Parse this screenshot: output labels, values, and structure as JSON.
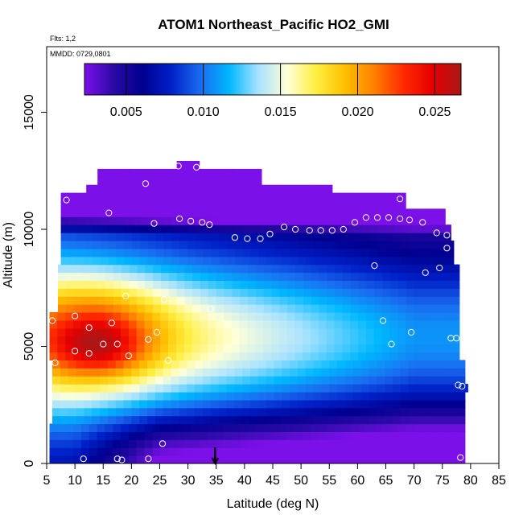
{
  "chart_data": {
    "type": "heatmap",
    "title": "ATOM1 Northeast_Pacific HO2_GMI",
    "note_flights": "Flts: 1,2",
    "note_dates": "MMDD: 0729,0801",
    "xlabel": "Latitude (deg N)",
    "ylabel": "Altitude (m)",
    "xlim": [
      5,
      85
    ],
    "ylim": [
      0,
      17800
    ],
    "x_ticks": [
      5,
      10,
      15,
      20,
      25,
      30,
      35,
      40,
      45,
      50,
      55,
      60,
      65,
      70,
      75,
      80,
      85
    ],
    "x_tick_labels": [
      "5",
      "10",
      "15",
      "20",
      "25",
      "30",
      "35",
      "40",
      "45",
      "50",
      "55",
      "60",
      "65",
      "70",
      "75",
      "80",
      "85"
    ],
    "y_ticks": [
      0,
      5000,
      10000,
      15000
    ],
    "y_tick_labels": [
      "0",
      "5000",
      "10000",
      "15000"
    ],
    "colorbar": {
      "range": [
        0.0023,
        0.0267
      ],
      "ticks": [
        0.005,
        0.01,
        0.015,
        0.02,
        0.025
      ],
      "tick_labels": [
        "0.005",
        "0.010",
        "0.015",
        "0.020",
        "0.025"
      ],
      "placement": "top, inside plot",
      "colors": [
        "#7b10e8",
        "#2a0aa6",
        "#00008f",
        "#0020c8",
        "#1a6cf0",
        "#00b8ff",
        "#a8e2ff",
        "#ffffd8",
        "#ffee40",
        "#ffbf00",
        "#ff8000",
        "#ff2a00",
        "#e60000",
        "#a81818"
      ]
    },
    "marker_latitude": 34.8,
    "value_grid_description": "HO2 mixing ratio vs latitude and altitude; max ~0.026 near 8-22N at 4-6 km, min ~0.003 above 11 km",
    "observations": [
      [
        28.3,
        12700
      ],
      [
        31.5,
        12650
      ],
      [
        22.5,
        11950
      ],
      [
        8.5,
        11250
      ],
      [
        67.5,
        11300
      ],
      [
        16,
        10700
      ],
      [
        24,
        10250
      ],
      [
        28.5,
        10450
      ],
      [
        30.5,
        10350
      ],
      [
        32.5,
        10300
      ],
      [
        33.8,
        10200
      ],
      [
        38.3,
        9650
      ],
      [
        40.5,
        9600
      ],
      [
        42.8,
        9600
      ],
      [
        44.5,
        9800
      ],
      [
        47,
        10100
      ],
      [
        49,
        10000
      ],
      [
        51.5,
        9950
      ],
      [
        53.5,
        9950
      ],
      [
        55.5,
        9950
      ],
      [
        57.5,
        10000
      ],
      [
        59.5,
        10300
      ],
      [
        61.5,
        10500
      ],
      [
        63.5,
        10500
      ],
      [
        65.5,
        10500
      ],
      [
        67.5,
        10450
      ],
      [
        69.2,
        10400
      ],
      [
        71.5,
        10300
      ],
      [
        74,
        9850
      ],
      [
        75.8,
        9750
      ],
      [
        75.8,
        9200
      ],
      [
        63,
        8450
      ],
      [
        72,
        8150
      ],
      [
        74.5,
        8350
      ],
      [
        19,
        7150
      ],
      [
        25.8,
        7000
      ],
      [
        34,
        6600
      ],
      [
        6,
        6100
      ],
      [
        10,
        6300
      ],
      [
        12.5,
        5800
      ],
      [
        16.5,
        6000
      ],
      [
        24.5,
        5600
      ],
      [
        64.5,
        6100
      ],
      [
        69.5,
        5600
      ],
      [
        76.5,
        5350
      ],
      [
        77.5,
        5350
      ],
      [
        66,
        5100
      ],
      [
        10,
        4800
      ],
      [
        12.5,
        4700
      ],
      [
        15,
        5100
      ],
      [
        17.5,
        5100
      ],
      [
        19.5,
        4600
      ],
      [
        23,
        5300
      ],
      [
        26.5,
        4400
      ],
      [
        6.5,
        4300
      ],
      [
        77.8,
        3350
      ],
      [
        78.5,
        3300
      ],
      [
        25.5,
        850
      ],
      [
        11.5,
        200
      ],
      [
        17.5,
        200
      ],
      [
        18.3,
        150
      ],
      [
        23,
        200
      ],
      [
        78.2,
        250
      ]
    ]
  }
}
